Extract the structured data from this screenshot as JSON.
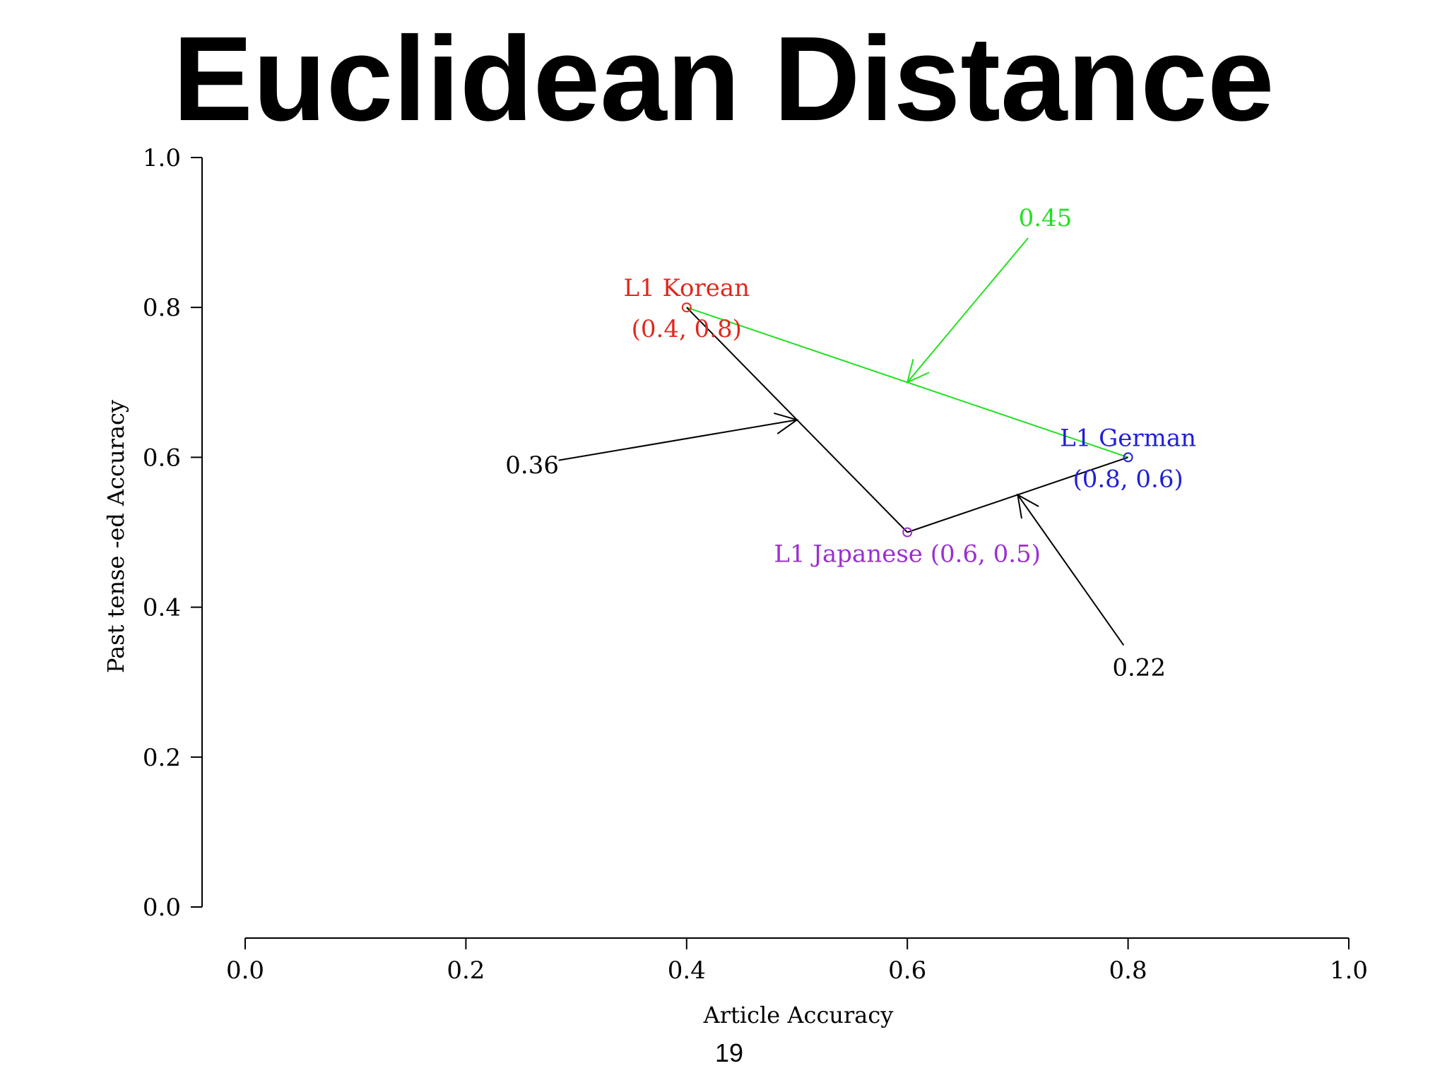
{
  "slide": {
    "title": "Euclidean Distance",
    "page_number": "19"
  },
  "chart_data": {
    "type": "scatter",
    "xlabel": "Article Accuracy",
    "ylabel": "Past tense -ed Accuracy",
    "xlim": [
      0,
      1
    ],
    "ylim": [
      0,
      1
    ],
    "x_ticks": [
      "0.0",
      "0.2",
      "0.4",
      "0.6",
      "0.8",
      "1.0"
    ],
    "y_ticks": [
      "0.0",
      "0.2",
      "0.4",
      "0.6",
      "0.8",
      "1.0"
    ],
    "grid": false,
    "points": [
      {
        "id": "korean",
        "x": 0.4,
        "y": 0.8,
        "label": "L1 Korean",
        "coord_label": "(0.4, 0.8)",
        "color": "#e0281e"
      },
      {
        "id": "german",
        "x": 0.8,
        "y": 0.6,
        "label": "L1 German",
        "coord_label": "(0.8, 0.6)",
        "color": "#1f1fd8"
      },
      {
        "id": "japanese",
        "x": 0.6,
        "y": 0.5,
        "label": "L1 Japanese (0.6, 0.5)",
        "color": "#9b2fd0"
      }
    ],
    "segments": [
      {
        "from": "korean",
        "to": "german",
        "color": "#22e022",
        "distance_label": "0.45",
        "label_x": 0.725,
        "label_y": 0.92
      },
      {
        "from": "korean",
        "to": "japanese",
        "color": "#000000",
        "distance_label": "0.36",
        "label_x": 0.26,
        "label_y": 0.59
      },
      {
        "from": "japanese",
        "to": "german",
        "color": "#000000",
        "distance_label": "0.22",
        "label_x": 0.81,
        "label_y": 0.32
      }
    ]
  }
}
